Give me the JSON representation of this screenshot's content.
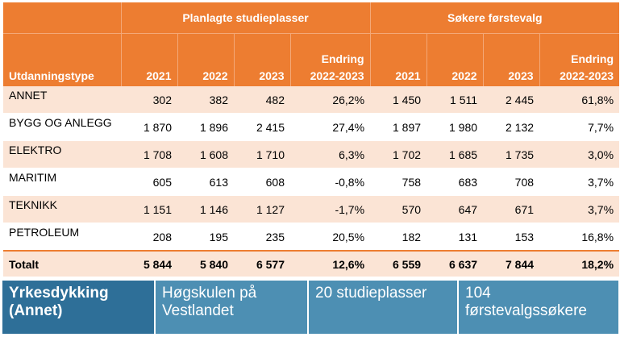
{
  "table": {
    "group_headers": [
      "Planlagte studieplasser",
      "Søkere førstevalg"
    ],
    "column_headers": [
      "Utdanningstype",
      "2021",
      "2022",
      "2023",
      "Endring 2022-2023",
      "2021",
      "2022",
      "2023",
      "Endring 2022-2023"
    ],
    "rows": [
      [
        "ANNET",
        "302",
        "382",
        "482",
        "26,2%",
        "1 450",
        "1 511",
        "2 445",
        "61,8%"
      ],
      [
        "BYGG OG ANLEGG",
        "1 870",
        "1 896",
        "2 415",
        "27,4%",
        "1 897",
        "1 980",
        "2 132",
        "7,7%"
      ],
      [
        "ELEKTRO",
        "1 708",
        "1 608",
        "1 710",
        "6,3%",
        "1 702",
        "1 685",
        "1 735",
        "3,0%"
      ],
      [
        "MARITIM",
        "605",
        "613",
        "608",
        "-0,8%",
        "758",
        "683",
        "708",
        "3,7%"
      ],
      [
        "TEKNIKK",
        "1 151",
        "1 146",
        "1 127",
        "-1,7%",
        "570",
        "647",
        "671",
        "3,7%"
      ],
      [
        "PETROLEUM",
        "208",
        "195",
        "235",
        "20,5%",
        "182",
        "131",
        "153",
        "16,8%"
      ]
    ],
    "total": [
      "Totalt",
      "5 844",
      "5 840",
      "6 577",
      "12,6%",
      "6 559",
      "6 637",
      "7 844",
      "18,2%"
    ]
  },
  "banner": {
    "program": "Yrkesdykking (Annet)",
    "institution": "Høgskulen på Vestlandet",
    "seats": "20 studieplasser",
    "applicants": "104 førstevalgssøkere"
  },
  "colors": {
    "header_orange": "#ed7d31",
    "row_tint": "#fbe4d5",
    "banner_blue": "#4d8fb3",
    "banner_dark_blue": "#2e6f98"
  }
}
